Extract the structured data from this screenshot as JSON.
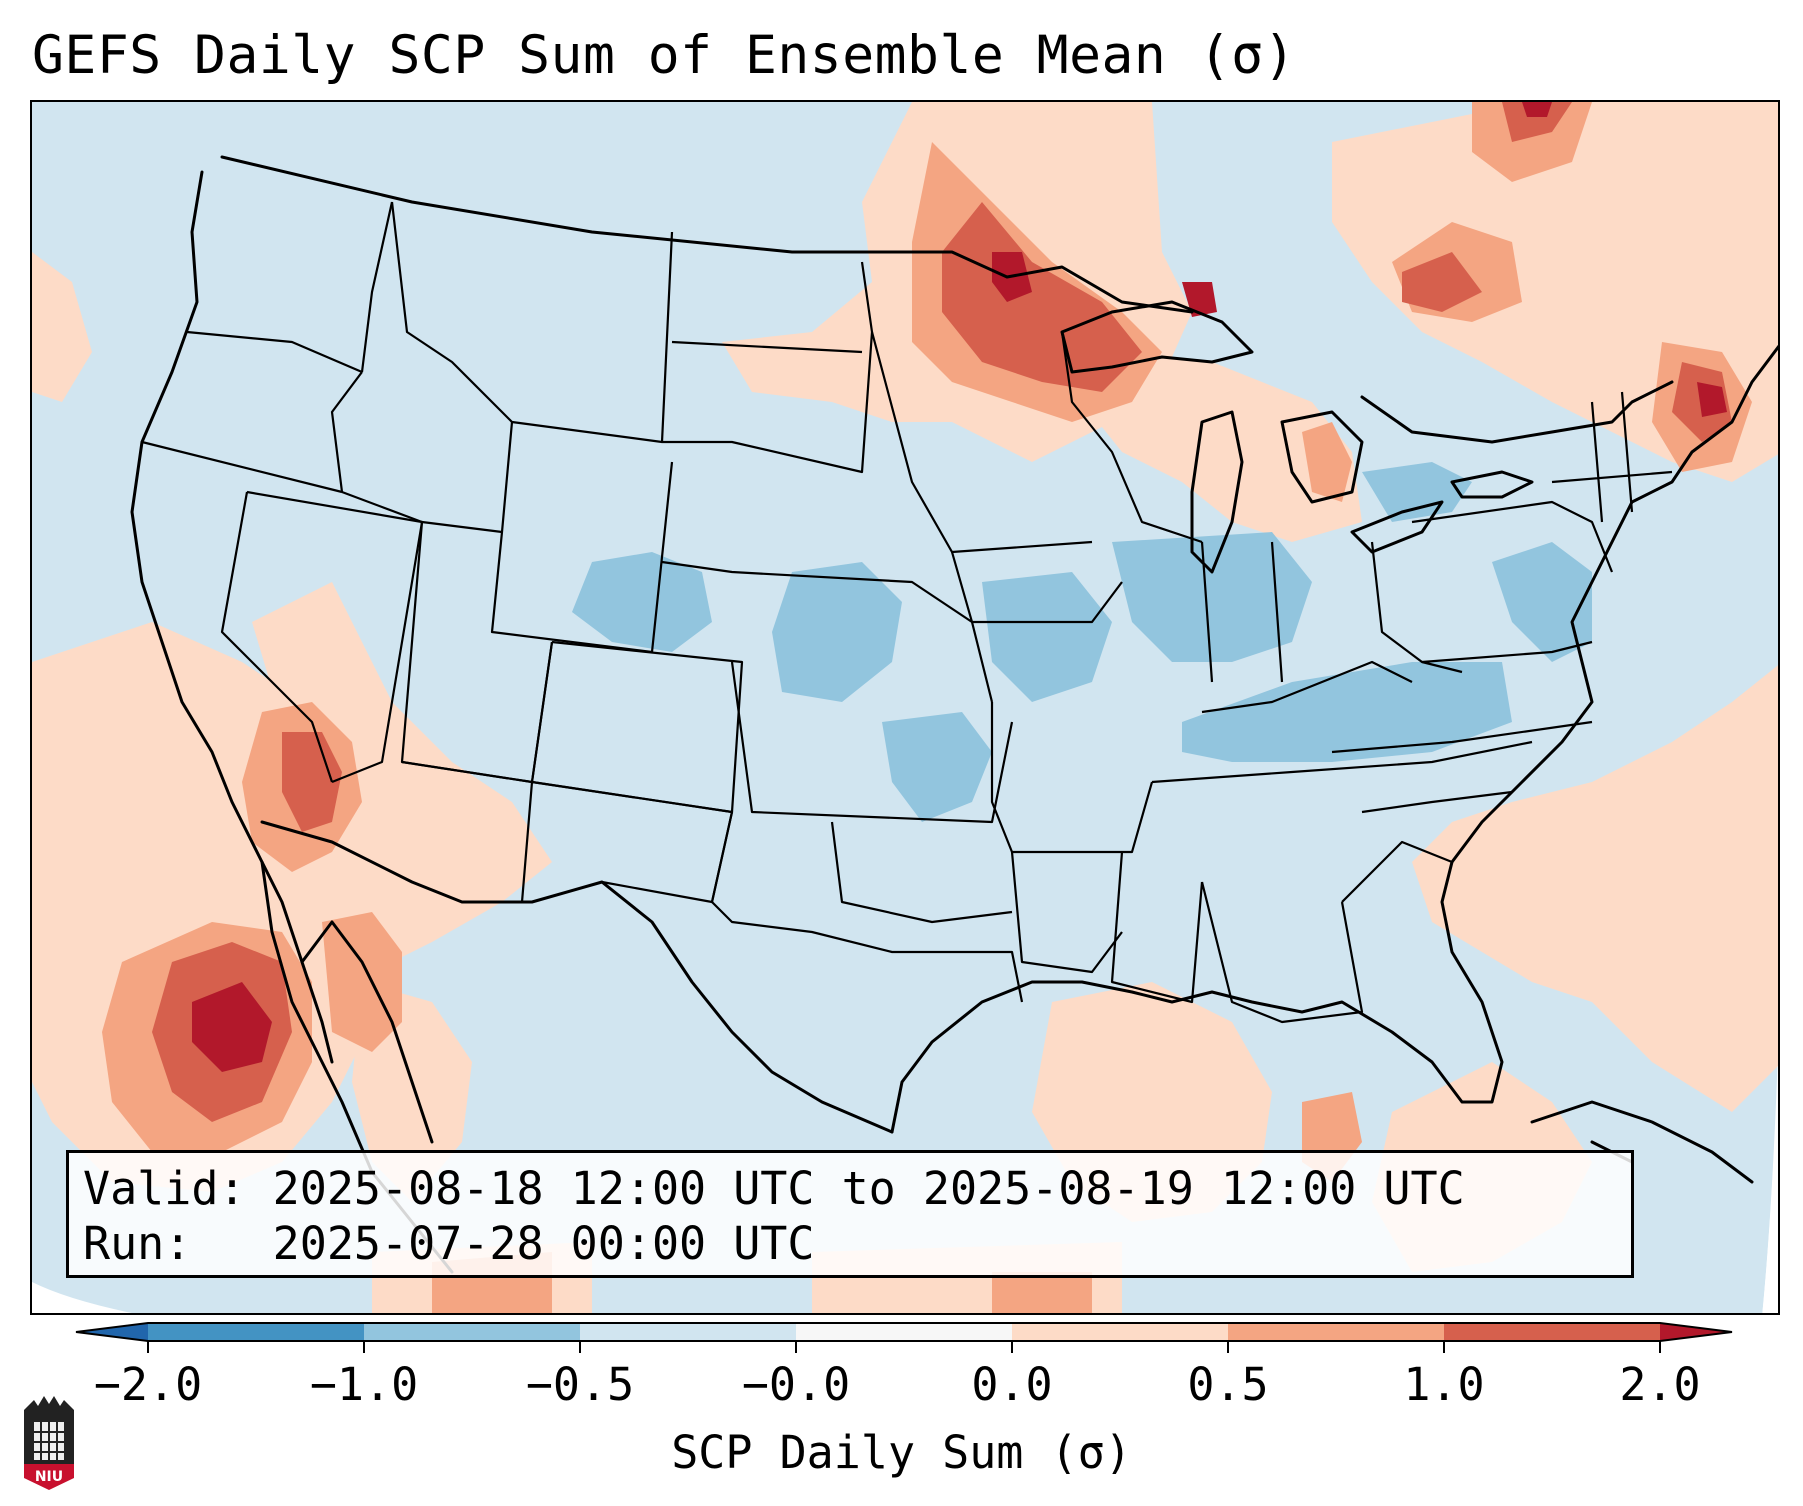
{
  "title": "GEFS Daily SCP Sum of Ensemble Mean (σ)",
  "info": {
    "valid_line": "Valid: 2025-08-18 12:00 UTC to 2025-08-19 12:00 UTC",
    "run_line": "Run:   2025-07-28 00:00 UTC"
  },
  "colorbar": {
    "label": "SCP Daily Sum (σ)",
    "tick_labels": [
      "−2.0",
      "−1.0",
      "−0.5",
      "−0.0",
      "0.0",
      "0.5",
      "1.0",
      "2.0"
    ],
    "bins": [
      {
        "range": "< -2.0",
        "color": "#2166ac"
      },
      {
        "range": "-2.0 to -1.0",
        "color": "#4393c3"
      },
      {
        "range": "-1.0 to -0.5",
        "color": "#92c5de"
      },
      {
        "range": "-0.5 to -0.0",
        "color": "#d1e5f0"
      },
      {
        "range": "-0.0 to 0.0",
        "color": "#f7f7f7"
      },
      {
        "range": "0.0 to 0.5",
        "color": "#fddbc7"
      },
      {
        "range": "0.5 to 1.0",
        "color": "#f4a582"
      },
      {
        "range": "1.0 to 2.0",
        "color": "#d6604d"
      },
      {
        "range": "> 2.0",
        "color": "#b2182b"
      }
    ]
  },
  "map": {
    "region": "Contiguous United States",
    "field": "SCP daily sum anomaly",
    "background_category": "-0.5 to -0.0",
    "regions": [
      {
        "name": "Upper Midwest / Lake Superior",
        "category": "1.0 to 2.0"
      },
      {
        "name": "Northern New England",
        "category": "1.0 to 2.0"
      },
      {
        "name": "Southern California / Baja offshore",
        "category": "> 2.0"
      },
      {
        "name": "Southeast Canada",
        "category": "0.5 to 1.0"
      },
      {
        "name": "Western Atlantic",
        "category": "0.0 to 0.5"
      },
      {
        "name": "Central Plains / Midwest",
        "category": "-1.0 to -0.5"
      },
      {
        "name": "Tennessee Valley / Carolinas",
        "category": "-1.0 to -0.5"
      }
    ]
  },
  "logo": {
    "text": "NIU"
  }
}
